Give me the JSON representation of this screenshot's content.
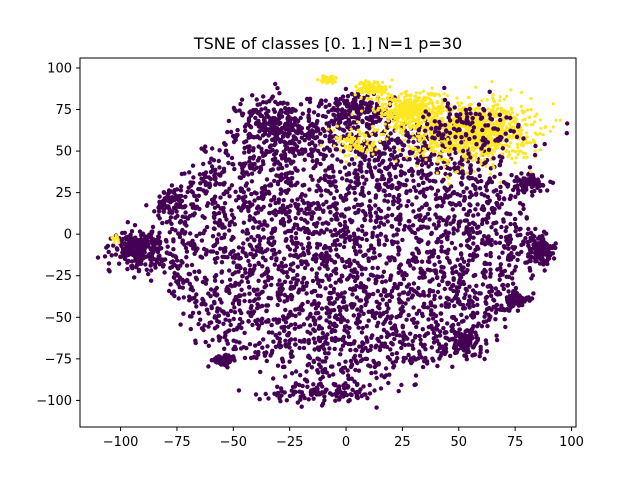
{
  "chart_data": {
    "type": "scatter",
    "title": "TSNE of classes [0. 1.] N=1 p=30",
    "xlabel": "",
    "ylabel": "",
    "xlim": [
      -118,
      102
    ],
    "ylim": [
      -116,
      106
    ],
    "xticks": [
      -100,
      -75,
      -50,
      -25,
      0,
      25,
      50,
      75,
      100
    ],
    "yticks": [
      -100,
      -75,
      -50,
      -25,
      0,
      25,
      50,
      75,
      100
    ],
    "xtick_labels": [
      "−100",
      "−75",
      "−50",
      "−25",
      "0",
      "25",
      "50",
      "75",
      "100"
    ],
    "ytick_labels": [
      "−100",
      "−75",
      "−50",
      "−25",
      "0",
      "25",
      "50",
      "75",
      "100"
    ],
    "grid": false,
    "series": [
      {
        "class": 0,
        "color": "#440154",
        "clusters": [
          {
            "cx": 0,
            "cy": -8,
            "rx": 82,
            "ry": 80,
            "n": 3200
          },
          {
            "cx": -92,
            "cy": -9,
            "rx": 12,
            "ry": 12,
            "n": 260
          },
          {
            "cx": -30,
            "cy": 66,
            "rx": 20,
            "ry": 20,
            "n": 260
          },
          {
            "cx": 5,
            "cy": 75,
            "rx": 18,
            "ry": 10,
            "n": 140
          },
          {
            "cx": 80,
            "cy": 30,
            "rx": 8,
            "ry": 6,
            "n": 90
          },
          {
            "cx": 86,
            "cy": -9,
            "rx": 8,
            "ry": 10,
            "n": 110
          },
          {
            "cx": 76,
            "cy": -40,
            "rx": 6,
            "ry": 6,
            "n": 60
          },
          {
            "cx": -54,
            "cy": -76,
            "rx": 6,
            "ry": 4,
            "n": 60
          },
          {
            "cx": 52,
            "cy": -65,
            "rx": 9,
            "ry": 9,
            "n": 90
          },
          {
            "cx": -8,
            "cy": -95,
            "rx": 30,
            "ry": 7,
            "n": 120
          },
          {
            "cx": -78,
            "cy": 20,
            "rx": 8,
            "ry": 8,
            "n": 70
          }
        ]
      },
      {
        "class": 1,
        "color": "#fde725",
        "clusters": [
          {
            "cx": 55,
            "cy": 62,
            "rx": 30,
            "ry": 20,
            "n": 1100
          },
          {
            "cx": 28,
            "cy": 75,
            "rx": 16,
            "ry": 12,
            "n": 340
          },
          {
            "cx": 12,
            "cy": 88,
            "rx": 8,
            "ry": 5,
            "n": 120
          },
          {
            "cx": -8,
            "cy": 93,
            "rx": 5,
            "ry": 3,
            "n": 50
          },
          {
            "cx": 5,
            "cy": 55,
            "rx": 12,
            "ry": 10,
            "n": 90
          },
          {
            "cx": -102,
            "cy": -3,
            "rx": 2,
            "ry": 2,
            "n": 12
          }
        ],
        "mixed_fraction": 0.12
      }
    ]
  }
}
